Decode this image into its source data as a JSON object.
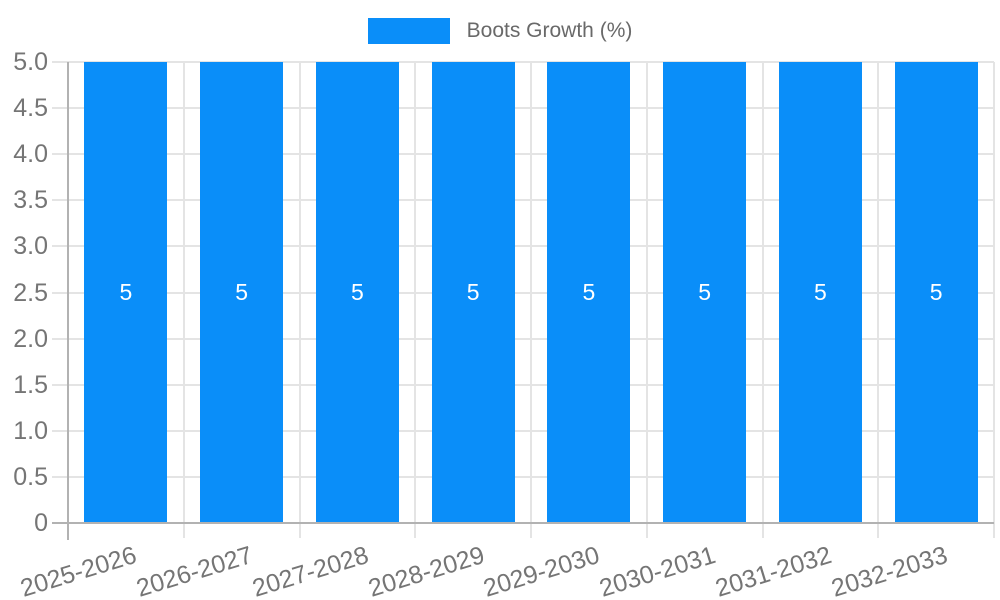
{
  "legend": {
    "label": "Boots Growth (%)"
  },
  "chart_data": {
    "type": "bar",
    "title": "",
    "xlabel": "",
    "ylabel": "",
    "categories": [
      "2025-2026",
      "2026-2027",
      "2027-2028",
      "2028-2029",
      "2029-2030",
      "2030-2031",
      "2031-2032",
      "2032-2033"
    ],
    "series": [
      {
        "name": "Boots Growth (%)",
        "values": [
          5,
          5,
          5,
          5,
          5,
          5,
          5,
          5
        ]
      }
    ],
    "bar_value_labels": [
      "5",
      "5",
      "5",
      "5",
      "5",
      "5",
      "5",
      "5"
    ],
    "ylim": [
      0,
      5
    ],
    "ytick_labels": [
      "0",
      "0.5",
      "1.0",
      "1.5",
      "2.0",
      "2.5",
      "3.0",
      "3.5",
      "4.0",
      "4.5",
      "5.0"
    ],
    "grid": true,
    "legend_position": "top-center",
    "colors": {
      "bar": "#0a8ef9",
      "grid": "#e4e4e4",
      "axis": "#b2b2b2",
      "tick_label": "#757575",
      "legend_text": "#696969",
      "value_label": "#ffffff",
      "background": "#ffffff"
    }
  }
}
